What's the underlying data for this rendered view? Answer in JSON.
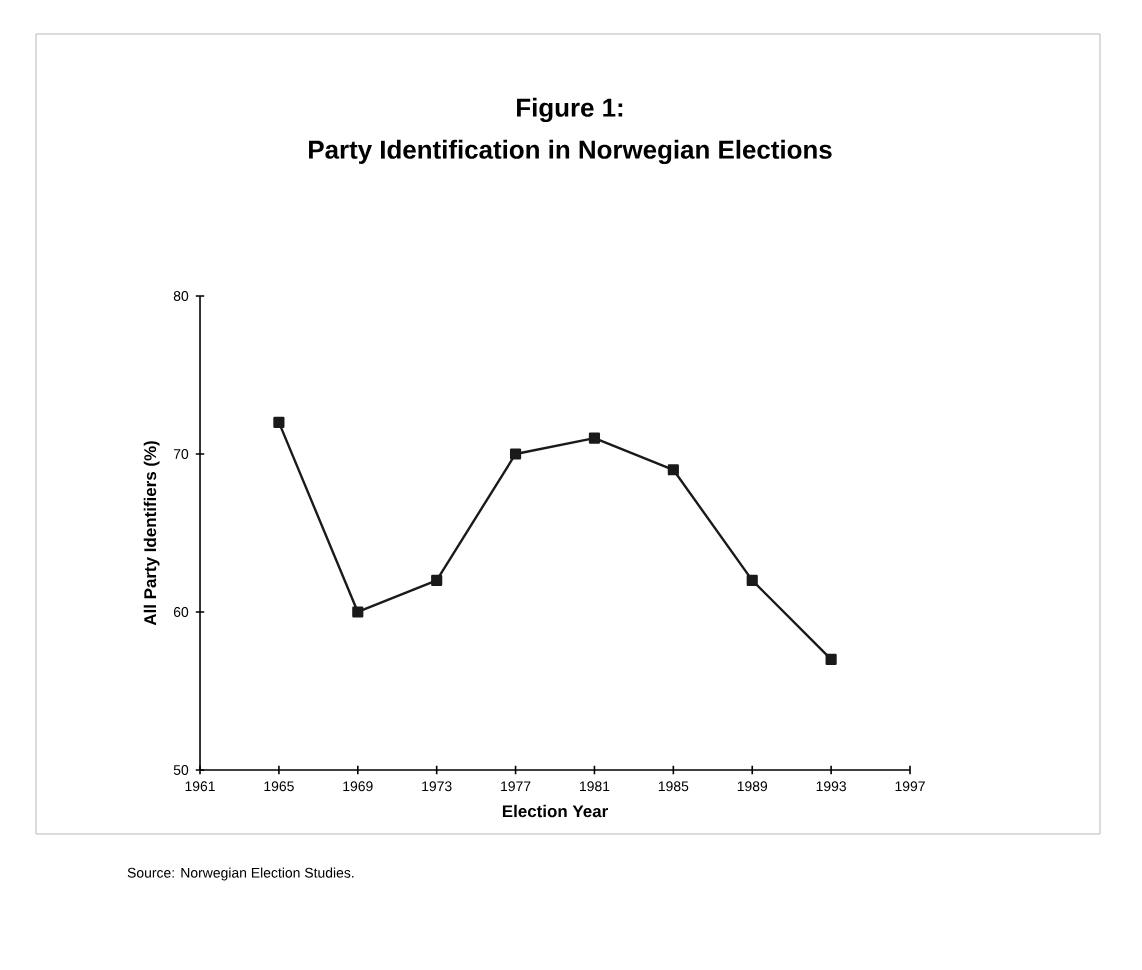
{
  "chart_data": {
    "type": "line",
    "title": "Figure 1:",
    "subtitle": "Party Identification in Norwegian Elections",
    "xlabel": "Election Year",
    "ylabel": "All Party Identifiers (%)",
    "x": [
      1965,
      1969,
      1973,
      1977,
      1981,
      1985,
      1989,
      1993
    ],
    "values": [
      72,
      60,
      62,
      70,
      71,
      69,
      62,
      57
    ],
    "color": "#1a1a1a",
    "marker": "square",
    "line_style": "solid",
    "grid": false,
    "xlim": [
      1961,
      1997
    ],
    "xticks": [
      1961,
      1965,
      1969,
      1973,
      1977,
      1981,
      1985,
      1989,
      1993,
      1997
    ],
    "ylim": [
      50,
      80
    ],
    "yticks": [
      50,
      60,
      70,
      80
    ],
    "annotations": [
      "Source: Norwegian Election Studies."
    ]
  }
}
